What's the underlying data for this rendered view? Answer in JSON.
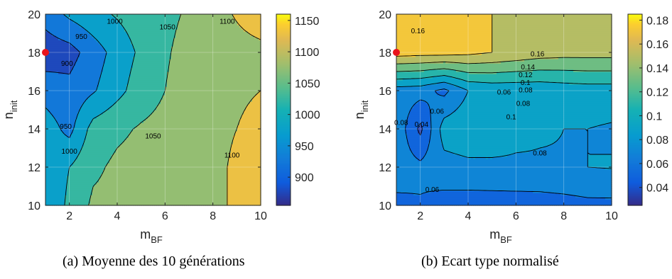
{
  "chart_data": [
    {
      "type": "contour",
      "caption": "(a) Moyenne des 10 générations",
      "xlabel": "m",
      "xlabel_sub": "BF",
      "ylabel": "n",
      "ylabel_sub": "init",
      "xlim": [
        1,
        10
      ],
      "ylim": [
        10,
        20
      ],
      "xticks": [
        "2",
        "4",
        "6",
        "8",
        "10"
      ],
      "yticks": [
        "10",
        "12",
        "14",
        "16",
        "18",
        "20"
      ],
      "colorbar": {
        "min": 855,
        "max": 1160,
        "ticks": [
          "900",
          "950",
          "1000",
          "1050",
          "1100",
          "1150"
        ]
      },
      "contour_levels": [
        900,
        950,
        1000,
        1050,
        1100
      ],
      "contour_labels": [
        "900",
        "950",
        "950",
        "1000",
        "1000",
        "1050",
        "1050",
        "1100",
        "1100"
      ],
      "grid": {
        "x": [
          1,
          2,
          3,
          4,
          5,
          6,
          7,
          8,
          9,
          10
        ],
        "y": [
          10,
          12,
          14,
          16,
          18,
          20
        ]
      },
      "values": [
        [
          960,
          1010,
          1060,
          1065,
          1070,
          1075,
          1080,
          1085,
          1110,
          1135
        ],
        [
          965,
          1000,
          1040,
          1060,
          1068,
          1072,
          1078,
          1085,
          1110,
          1135
        ],
        [
          975,
          935,
          1020,
          1040,
          1055,
          1065,
          1075,
          1085,
          1100,
          1120
        ],
        [
          930,
          915,
          945,
          985,
          1025,
          1050,
          1070,
          1080,
          1090,
          1100
        ],
        [
          870,
          880,
          925,
          970,
          1010,
          1045,
          1065,
          1075,
          1080,
          1085
        ],
        [
          920,
          960,
          985,
          1005,
          1025,
          1040,
          1055,
          1080,
          1105,
          1130
        ]
      ],
      "marker": {
        "x": 1,
        "y": 18
      }
    },
    {
      "type": "contour",
      "caption": "(b) Ecart type normalisé",
      "xlabel": "m",
      "xlabel_sub": "BF",
      "ylabel": "n",
      "ylabel_sub": "init",
      "xlim": [
        1,
        10
      ],
      "ylim": [
        10,
        20
      ],
      "xticks": [
        "2",
        "4",
        "6",
        "8",
        "10"
      ],
      "yticks": [
        "10",
        "12",
        "14",
        "16",
        "18",
        "20"
      ],
      "colorbar": {
        "min": 0.025,
        "max": 0.185,
        "ticks": [
          "0.04",
          "0.06",
          "0.08",
          "0.1",
          "0.12",
          "0.14",
          "0.16",
          "0.18"
        ]
      },
      "contour_levels": [
        0.04,
        0.06,
        0.08,
        0.1,
        0.12,
        0.14,
        0.16
      ],
      "contour_labels": [
        "0.16",
        "0.16",
        "0.14",
        "0.12",
        "0.1",
        "0.08",
        "0.06",
        "0.08",
        "0.1",
        "0.08",
        "0.06",
        "0.08",
        "0.04",
        "0.06"
      ],
      "grid": {
        "x": [
          1,
          2,
          3,
          4,
          5,
          6,
          7,
          8,
          9,
          10
        ],
        "y": [
          10,
          12,
          14,
          16,
          18,
          20
        ]
      },
      "values": [
        [
          0.055,
          0.058,
          0.052,
          0.05,
          0.05,
          0.05,
          0.05,
          0.052,
          0.055,
          0.055
        ],
        [
          0.07,
          0.065,
          0.072,
          0.075,
          0.076,
          0.077,
          0.078,
          0.079,
          0.08,
          0.081
        ],
        [
          0.075,
          0.035,
          0.09,
          0.095,
          0.092,
          0.085,
          0.082,
          0.08,
          0.08,
          0.078
        ],
        [
          0.07,
          0.068,
          0.055,
          0.08,
          0.085,
          0.085,
          0.085,
          0.088,
          0.09,
          0.09
        ],
        [
          0.17,
          0.168,
          0.168,
          0.165,
          0.16,
          0.155,
          0.15,
          0.148,
          0.148,
          0.148
        ],
        [
          0.165,
          0.17,
          0.175,
          0.17,
          0.16,
          0.155,
          0.155,
          0.155,
          0.155,
          0.155
        ]
      ],
      "marker": {
        "x": 1,
        "y": 18
      }
    }
  ]
}
